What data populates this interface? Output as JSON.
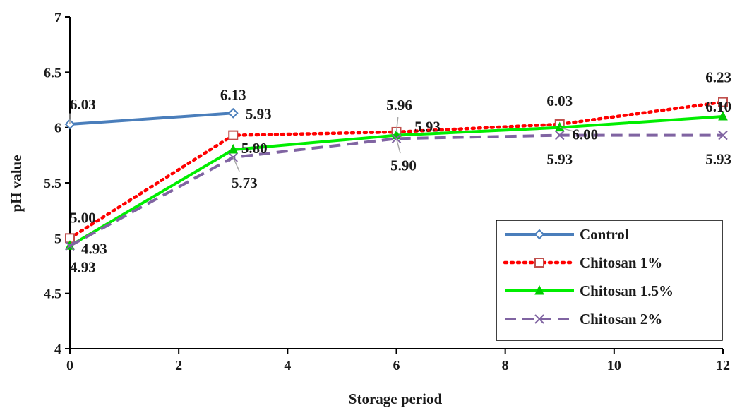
{
  "chart_data": {
    "type": "line",
    "title": "",
    "xlabel": "Storage period",
    "ylabel": "pH value",
    "xlim": [
      0,
      12
    ],
    "ylim": [
      4,
      7
    ],
    "xticks": [
      0,
      2,
      4,
      6,
      8,
      10,
      12
    ],
    "yticks": [
      4,
      4.5,
      5,
      5.5,
      6,
      6.5,
      7
    ],
    "ytick_labels": [
      "4",
      "4.5",
      "5",
      "5.5",
      "6",
      "6.5",
      "7"
    ],
    "grid": false,
    "legend_position": "bottom-right",
    "series": [
      {
        "name": "Control",
        "x": [
          0,
          3
        ],
        "y": [
          6.03,
          6.13
        ],
        "labels": [
          "6.03",
          "6.13"
        ],
        "color": "#4a7ebb",
        "marker": "diamond",
        "line_style": "solid"
      },
      {
        "name": "Chitosan 1%",
        "x": [
          0,
          3,
          6,
          9,
          12
        ],
        "y": [
          5.0,
          5.93,
          5.96,
          6.03,
          6.23
        ],
        "labels": [
          "5.00",
          "5.93",
          "5.96",
          "6.03",
          "6.23"
        ],
        "color": "#ff0000",
        "marker_color": "#c0504d",
        "marker": "square",
        "line_style": "dotted"
      },
      {
        "name": "Chitosan 1.5%",
        "x": [
          0,
          3,
          6,
          9,
          12
        ],
        "y": [
          4.93,
          5.8,
          5.93,
          6.0,
          6.1
        ],
        "labels": [
          "4.93",
          "5.80",
          "5.93",
          "6.00",
          "6.10"
        ],
        "color": "#00ee00",
        "marker_color": "#00cc00",
        "marker": "triangle",
        "line_style": "solid"
      },
      {
        "name": "Chitosan 2%",
        "x": [
          0,
          3,
          6,
          9,
          12
        ],
        "y": [
          4.93,
          5.73,
          5.9,
          5.93,
          5.93
        ],
        "labels": [
          "4.93",
          "5.73",
          "5.90",
          "5.93",
          "5.93"
        ],
        "color": "#8064a2",
        "marker": "x",
        "line_style": "dashed"
      }
    ]
  }
}
